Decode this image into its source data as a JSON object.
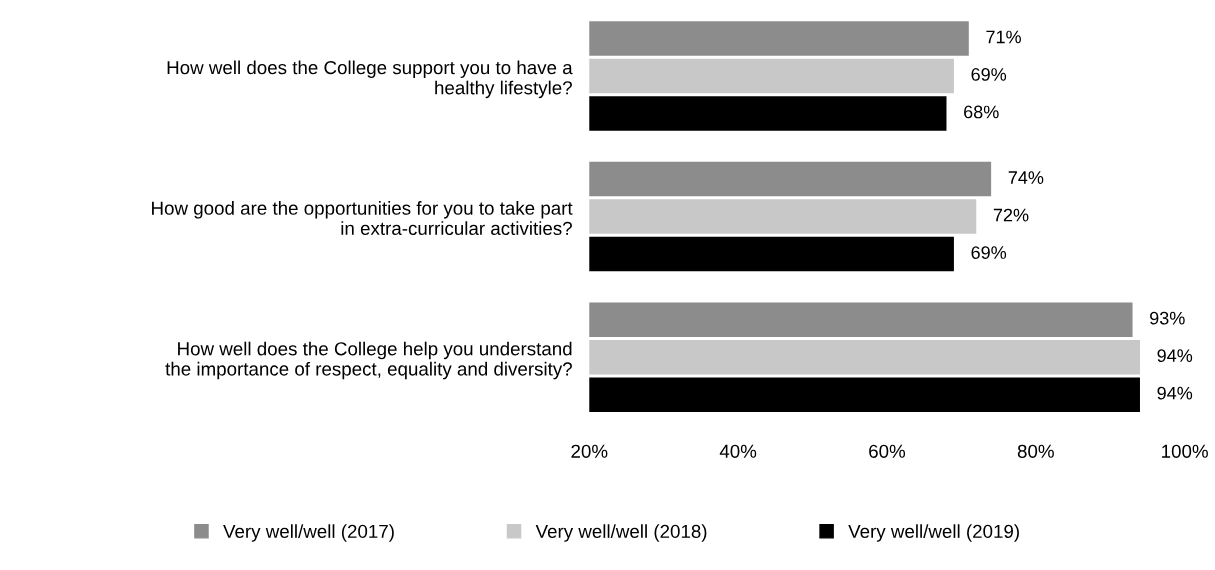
{
  "chart_data": {
    "type": "bar",
    "orientation": "horizontal",
    "categories": [
      "How well does the College support you to have a\nhealthy lifestyle?",
      "How good are the opportunities for you to take part\nin extra-curricular activities?",
      "How well does the College help you understand\nthe importance of respect, equality and diversity?"
    ],
    "series": [
      {
        "name": "Very well/well (2017)",
        "color": "#8c8c8c",
        "values": [
          71,
          74,
          93
        ],
        "value_labels": [
          "71%",
          "74%",
          "93%"
        ]
      },
      {
        "name": "Very well/well (2018)",
        "color": "#c8c8c8",
        "values": [
          69,
          72,
          94
        ],
        "value_labels": [
          "69%",
          "72%",
          "94%"
        ]
      },
      {
        "name": "Very well/well (2019)",
        "color": "#000000",
        "values": [
          68,
          69,
          94
        ],
        "value_labels": [
          "68%",
          "69%",
          "94%"
        ]
      }
    ],
    "xlim": [
      20,
      100
    ],
    "xticks": [
      {
        "value": 20,
        "label": "20%"
      },
      {
        "value": 40,
        "label": "40%"
      },
      {
        "value": 60,
        "label": "60%"
      },
      {
        "value": 80,
        "label": "80%"
      },
      {
        "value": 100,
        "label": "100%"
      }
    ],
    "grid": false,
    "legend": "bottom"
  }
}
